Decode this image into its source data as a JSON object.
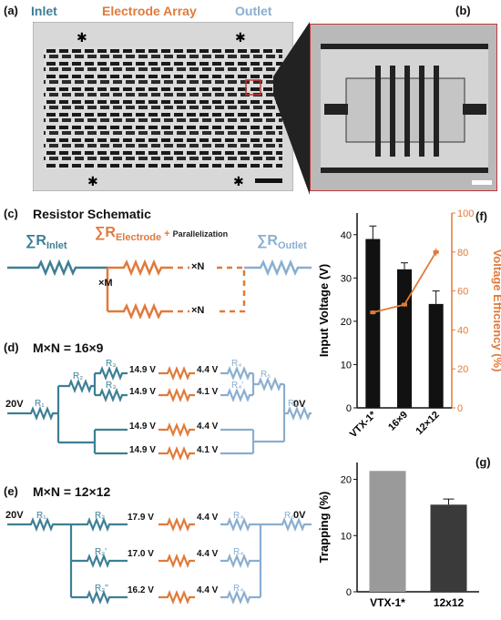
{
  "panels": {
    "a": {
      "label": "(a)",
      "inlet": "Inlet",
      "electrode_array": "Electrode Array",
      "outlet": "Outlet"
    },
    "b": {
      "label": "(b)"
    },
    "c": {
      "label": "(c)",
      "title": "Resistor Schematic",
      "sigma": "∑R",
      "inlet_sub": "Inlet",
      "electrode_sub": "Electrode",
      "plus": " + ",
      "parallel": "Parallelization",
      "outlet_sub": "Outlet",
      "xN": "×N",
      "xM": "×M"
    },
    "d": {
      "label": "(d)",
      "title": "M×N = 16×9",
      "v_in": "20V",
      "v_out": "0V",
      "r1": "R₁",
      "r2": "R₂",
      "r3": "R₃",
      "r4": "R₄",
      "r5": "R₅",
      "r6": "R₆",
      "r4p": "R₄'",
      "rows": [
        {
          "left": "14.9 V",
          "right": "4.4 V"
        },
        {
          "left": "14.9 V",
          "right": "4.1 V"
        },
        {
          "left": "14.9 V",
          "right": "4.4 V"
        },
        {
          "left": "14.9 V",
          "right": "4.1 V"
        }
      ]
    },
    "e": {
      "label": "(e)",
      "title": "M×N = 12×12",
      "v_in": "20V",
      "v_out": "0V",
      "r1": "R₁",
      "r6": "R₆",
      "rows": [
        {
          "r": "R₂",
          "left": "17.9 V",
          "right": "4.4 V",
          "r4": "R₄"
        },
        {
          "r": "R₂'",
          "left": "17.0 V",
          "right": "4.4 V",
          "r4": "R₄"
        },
        {
          "r": "R₂''",
          "left": "16.2 V",
          "right": "4.4 V",
          "r4": "R₄"
        }
      ]
    },
    "f": {
      "label": "(f)"
    },
    "g": {
      "label": "(g)"
    }
  },
  "chart_data": [
    {
      "type": "bar",
      "panel": "f",
      "categories": [
        "VTX-1*",
        "16×9",
        "12×12"
      ],
      "series": [
        {
          "name": "Input Voltage (V)",
          "values": [
            39,
            32,
            24
          ],
          "errors": [
            3,
            1.5,
            3
          ],
          "color": "#111111"
        },
        {
          "name": "Voltage Efficiency (%)",
          "type": "line",
          "values": [
            49,
            53,
            80
          ],
          "errors": [
            1,
            1,
            2
          ],
          "color": "#e07a3a"
        }
      ],
      "ylabel": "Input Voltage (V)",
      "ylim": [
        0,
        45
      ],
      "yticks": [
        0,
        10,
        20,
        30,
        40
      ],
      "y2label": "Voltage Efficiency (%)",
      "y2lim": [
        0,
        100
      ],
      "y2ticks": [
        0,
        20,
        40,
        60,
        80,
        100
      ]
    },
    {
      "type": "bar",
      "panel": "g",
      "categories": [
        "VTX-1*",
        "12x12"
      ],
      "values": [
        21.5,
        15.5
      ],
      "errors": [
        0,
        1
      ],
      "colors": [
        "#9a9a9a",
        "#3a3a3a"
      ],
      "ylabel": "Trapping (%)",
      "ylim": [
        0,
        23
      ],
      "yticks": [
        0,
        10,
        20
      ]
    }
  ],
  "colors": {
    "inlet": "#3d7f95",
    "electrode": "#e07a3a",
    "outlet": "#8aaed0"
  }
}
